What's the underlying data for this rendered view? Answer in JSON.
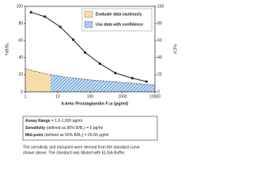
{
  "chart_data": {
    "type": "standard-curve",
    "x_label": "6-keto Prostaglandin F₁α (pg/ml)",
    "y_label": "%B/B₀",
    "y2_label": "%CV",
    "xlim": [
      1,
      10000
    ],
    "xticks": [
      1,
      10,
      100,
      1000,
      10000
    ],
    "log_x": true,
    "ylim": [
      0,
      100
    ],
    "yticks": [
      0,
      20,
      40,
      60,
      80,
      100
    ],
    "y2lim": [
      0,
      100
    ],
    "y2ticks": [
      0,
      20,
      40,
      60,
      80,
      100
    ],
    "curve": {
      "color": "#222222",
      "x": [
        1.5,
        4,
        12,
        30,
        70,
        200,
        600,
        2000,
        5500
      ],
      "values": [
        93,
        88,
        76,
        61,
        46,
        33,
        22,
        16,
        12
      ]
    },
    "series": [
      {
        "name": "Evaluate data cautiously",
        "color": "#f0b860",
        "axis": "y2",
        "x": [
          1,
          2,
          6
        ],
        "values": [
          27,
          24,
          20
        ]
      },
      {
        "name": "Use data with confidence",
        "color": "#2a78c8",
        "axis": "y2",
        "x": [
          6,
          20,
          100,
          1000,
          10000
        ],
        "values": [
          20,
          17,
          14,
          11,
          8
        ]
      }
    ]
  },
  "info_box": {
    "lines": [
      {
        "label": "Assay Range",
        "text": "= 1.6-1,000 pg/ml"
      },
      {
        "label": "Sensitivity",
        "text": "(defined as 80% B/B₀) = 6 pg/ml"
      },
      {
        "label": "Mid-point",
        "text": "(defined as 50% B/B₀) = 20-60 pg/ml"
      }
    ]
  },
  "note": {
    "lines": [
      "The sensitivity and mid-point were derived from the standard curve",
      "shown above. The standard was diluted with ELISA Buffer."
    ]
  }
}
